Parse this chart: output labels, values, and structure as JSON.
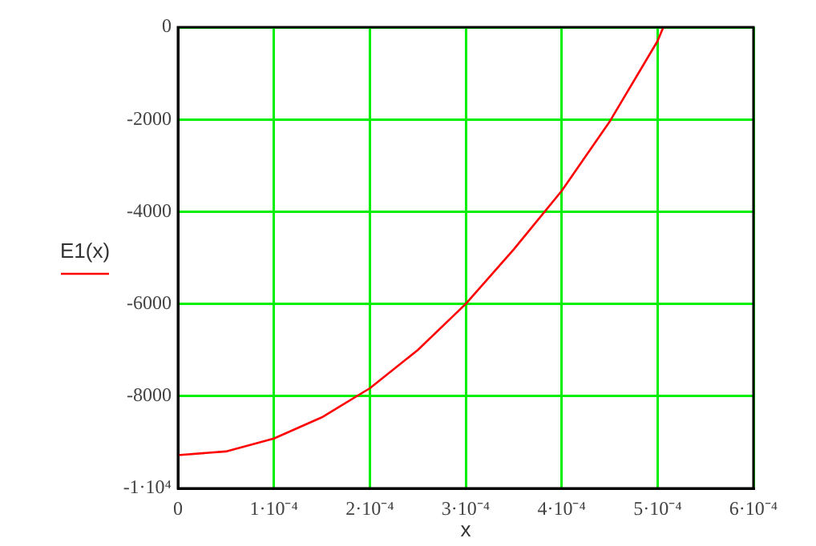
{
  "chart_data": {
    "type": "line",
    "xlabel": "x",
    "x": [
      0,
      5e-05,
      0.0001,
      0.00015,
      0.0002,
      0.00025,
      0.0003,
      0.00035,
      0.0004,
      0.00045,
      0.0005,
      0.000506
    ],
    "series": [
      {
        "name": "E1(x)",
        "color": "#ff0000",
        "values": [
          -9280,
          -9200,
          -8920,
          -8460,
          -7830,
          -7000,
          -6000,
          -4820,
          -3550,
          -2050,
          -300,
          0
        ]
      }
    ],
    "xlim": [
      0,
      0.0006
    ],
    "xticks": [
      0,
      {
        "value": 0.0001,
        "label": "1·10⁻⁴"
      },
      {
        "value": 0.0002,
        "label": "2·10⁻⁴"
      },
      {
        "value": 0.0003,
        "label": "3·10⁻⁴"
      },
      {
        "value": 0.0004,
        "label": "4·10⁻⁴"
      },
      {
        "value": 0.0005,
        "label": "5·10⁻⁴"
      },
      {
        "value": 0.0006,
        "label": "6·10⁻⁴"
      }
    ],
    "ylim": [
      -10000,
      0
    ],
    "yticks": [
      {
        "value": -10000,
        "label": "-1·10⁴"
      },
      {
        "value": -8000,
        "label": "-8000"
      },
      {
        "value": -6000,
        "label": "-6000"
      },
      {
        "value": -4000,
        "label": "-4000"
      },
      {
        "value": -2000,
        "label": "-2000"
      },
      0
    ],
    "grid": true,
    "legend": "left",
    "marker": "none",
    "line_style": "solid"
  }
}
